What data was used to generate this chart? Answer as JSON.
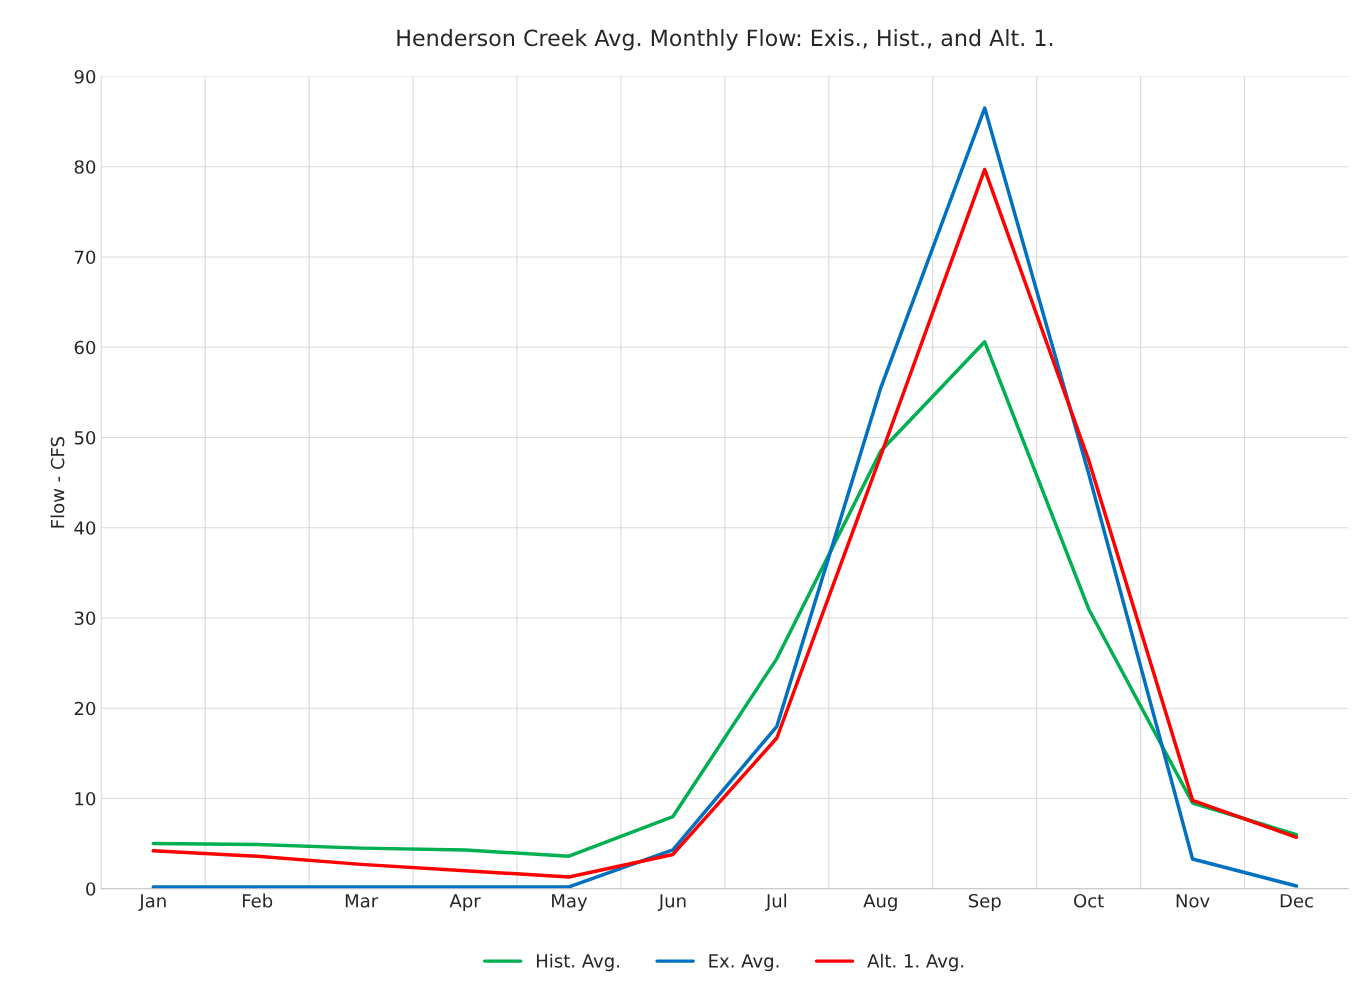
{
  "chart_data": {
    "type": "line",
    "title": "Henderson Creek Avg. Monthly Flow: Exis., Hist., and Alt. 1.",
    "ylabel": "Flow - CFS",
    "categories": [
      "Jan",
      "Feb",
      "Mar",
      "Apr",
      "May",
      "Jun",
      "Jul",
      "Aug",
      "Sep",
      "Oct",
      "Nov",
      "Dec"
    ],
    "series": [
      {
        "name": "Hist. Avg.",
        "color": "#00b050",
        "values": [
          5.0,
          4.9,
          4.5,
          4.3,
          3.6,
          8.0,
          25.5,
          48.5,
          60.6,
          31.0,
          9.5,
          6.0
        ]
      },
      {
        "name": "Ex. Avg.",
        "color": "#0070c0",
        "values": [
          0.2,
          0.2,
          0.2,
          0.2,
          0.2,
          4.3,
          18.0,
          55.5,
          86.5,
          46.0,
          3.3,
          0.3
        ]
      },
      {
        "name": "Alt. 1. Avg.",
        "color": "#ff0000",
        "values": [
          4.2,
          3.6,
          2.7,
          2.0,
          1.3,
          3.8,
          16.7,
          48.0,
          79.7,
          47.5,
          9.8,
          5.7
        ]
      }
    ],
    "ylim": [
      0,
      90
    ],
    "yticks": [
      0,
      10,
      20,
      30,
      40,
      50,
      60,
      70,
      80,
      90
    ],
    "grid": true,
    "legend": "bottom",
    "marker": "none",
    "line_style": "solid"
  }
}
